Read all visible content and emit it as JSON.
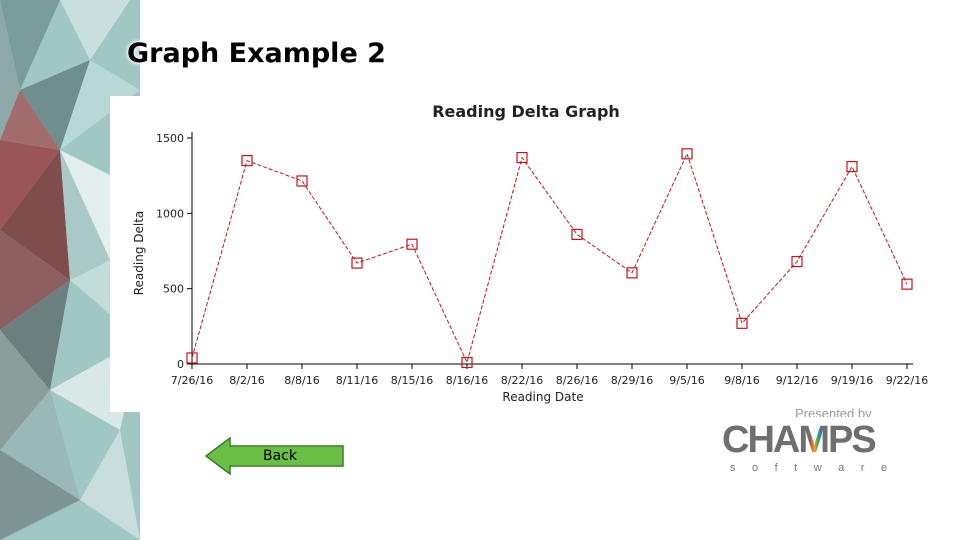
{
  "slide": {
    "title": "Graph Example 2",
    "back_label": "Back",
    "presented_by": "Presented by",
    "logo_text_left": "CHA",
    "logo_text_mid": "M",
    "logo_text_right": "PS",
    "logo_subtext": "software"
  },
  "colors": {
    "series": "#c0151b",
    "axis": "#000000",
    "button_fill": "#6abf45",
    "button_stroke": "#3f7a2a",
    "logo_gray": "#6f6f6f"
  },
  "icons": [
    "back-arrow-icon"
  ],
  "chart_data": {
    "type": "line",
    "title": "Reading Delta Graph",
    "xlabel": "Reading Date",
    "ylabel": "Reading Delta",
    "categories": [
      "7/26/16",
      "8/2/16",
      "8/8/16",
      "8/11/16",
      "8/15/16",
      "8/16/16",
      "8/22/16",
      "8/26/16",
      "8/29/16",
      "9/5/16",
      "9/8/16",
      "9/12/16",
      "9/19/16",
      "9/22/16"
    ],
    "series": [
      {
        "values": [
          40,
          1350,
          1215,
          670,
          795,
          10,
          1370,
          860,
          605,
          1395,
          270,
          680,
          1310,
          530
        ]
      }
    ],
    "yticks": [
      0,
      500,
      1000,
      1500
    ],
    "ylim": [
      0,
      1500
    ],
    "grid": false,
    "legend": "none",
    "line_style": "dashed",
    "marker": "open-square"
  }
}
